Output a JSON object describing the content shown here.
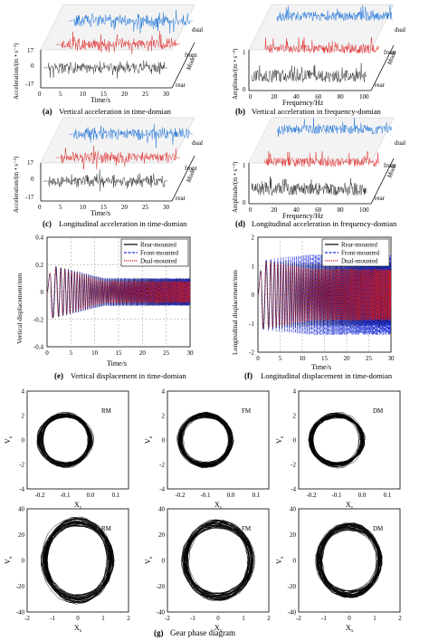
{
  "panels": {
    "a": {
      "letter": "(a)",
      "caption": "Vertical acceleration in time-domian",
      "ylabel": "Acceleration/(m • s⁻²)",
      "xlabel": "Time/s",
      "zlabel": "Mode",
      "yticks": [
        "17",
        "0",
        "-17"
      ],
      "xticks": [
        "0",
        "5",
        "10",
        "15",
        "20",
        "25",
        "30"
      ],
      "modes": [
        "dual",
        "front",
        "rear"
      ]
    },
    "b": {
      "letter": "(b)",
      "caption": "Vertical acceleration in frequency-domian",
      "ylabel": "Amplitude/(m • s⁻²)",
      "xlabel": "Frequency/Hz",
      "zlabel": "Mode",
      "yticks": [
        "1",
        "0"
      ],
      "xticks": [
        "0",
        "20",
        "40",
        "60",
        "80",
        "100"
      ],
      "modes": [
        "dual",
        "front",
        "rear"
      ]
    },
    "c": {
      "letter": "(c)",
      "caption": "Longitudinal acceleration in time-domian",
      "ylabel": "Acceleration/(m • s⁻²)",
      "xlabel": "Time/s",
      "zlabel": "Mode",
      "yticks": [
        "17",
        "0",
        "-17"
      ],
      "xticks": [
        "0",
        "5",
        "10",
        "15",
        "20",
        "25",
        "30"
      ],
      "modes": [
        "dual",
        "front",
        "rear"
      ]
    },
    "d": {
      "letter": "(d)",
      "caption": "Longitudinal acceleration in frequency-domian",
      "ylabel": "Amplitude/(m • s⁻²)",
      "xlabel": "Frequency/Hz",
      "zlabel": "Mode",
      "yticks": [
        "1",
        "0"
      ],
      "xticks": [
        "0",
        "20",
        "40",
        "60",
        "80",
        "100"
      ],
      "modes": [
        "dual",
        "front",
        "rear"
      ]
    },
    "e": {
      "letter": "(e)",
      "caption": "Vertical displacement in time-domian",
      "ylabel": "Vertical displacement/mm",
      "xlabel": "Time/s",
      "yticks": [
        "0.4",
        "0.2",
        "0",
        "-0.2",
        "-0.4"
      ],
      "xticks": [
        "0",
        "5",
        "10",
        "15",
        "20",
        "25",
        "30"
      ]
    },
    "f": {
      "letter": "(f)",
      "caption": "Longitudinal displacement in time-domian",
      "ylabel": "Longitudinal displacement/mm",
      "xlabel": "Time/s",
      "yticks": [
        "2",
        "1",
        "0",
        "-1",
        "-2"
      ],
      "xticks": [
        "0",
        "5",
        "10",
        "15",
        "20",
        "25",
        "30"
      ]
    },
    "legend": [
      "Rear-mounted",
      "Front-mounted",
      "Dual-mounted"
    ],
    "g": {
      "letter": "(g)",
      "caption": "Gear phase diagram",
      "top": {
        "xlabel": "X",
        "xsub": "z",
        "ylabel": "V",
        "ysub": "z",
        "xticks": [
          "-0.2",
          "-0.1",
          "0.0",
          "0.1"
        ],
        "yticks": [
          "4",
          "2",
          "0",
          "-2",
          "-4"
        ],
        "tags": [
          "RM",
          "FM",
          "DM"
        ]
      },
      "bottom": {
        "xlabel": "X",
        "xsub": "x",
        "ylabel": "V",
        "ysub": "x",
        "xticks": [
          "-2",
          "-1",
          "0",
          "1",
          "2"
        ],
        "yticks": [
          "40",
          "20",
          "0",
          "-20",
          "-40"
        ],
        "tags": [
          "RM",
          "FM",
          "DM"
        ]
      }
    }
  },
  "chart_data": [
    {
      "type": "line",
      "panel": "e",
      "xlabel": "Time/s",
      "ylabel": "Vertical displacement/mm",
      "xlim": [
        0,
        30
      ],
      "ylim": [
        -0.4,
        0.4
      ],
      "grid": true,
      "legend_position": "top-right",
      "series": [
        {
          "name": "Rear-mounted",
          "color": "#000000",
          "amplitude_start": 0.2,
          "amplitude_end": 0.1
        },
        {
          "name": "Front-mounted",
          "color": "#1f2fd6",
          "amplitude_start": 0.2,
          "amplitude_end": 0.1
        },
        {
          "name": "Dual-mounted",
          "color": "#d41a1a",
          "amplitude_start": 0.2,
          "amplitude_end": 0.08
        }
      ]
    },
    {
      "type": "line",
      "panel": "f",
      "xlabel": "Time/s",
      "ylabel": "Longitudinal displacement/mm",
      "xlim": [
        0,
        30
      ],
      "ylim": [
        -2,
        2
      ],
      "grid": true,
      "legend_position": "top-right",
      "series": [
        {
          "name": "Rear-mounted",
          "color": "#000000",
          "amplitude_start": 1.2,
          "amplitude_end": 1.1
        },
        {
          "name": "Front-mounted",
          "color": "#1f2fd6",
          "amplitude_start": 1.2,
          "amplitude_end": 1.4
        },
        {
          "name": "Dual-mounted",
          "color": "#d41a1a",
          "amplitude_start": 1.2,
          "amplitude_end": 0.9
        }
      ]
    },
    {
      "type": "line",
      "panel": "a",
      "xlim": [
        0,
        30
      ],
      "ylim": [
        -17,
        17
      ],
      "series": [
        {
          "name": "dual",
          "color": "#1e73d8"
        },
        {
          "name": "front",
          "color": "#e03030"
        },
        {
          "name": "rear",
          "color": "#333333"
        }
      ]
    },
    {
      "type": "line",
      "panel": "b",
      "xlim": [
        0,
        100
      ],
      "ylim": [
        0,
        1
      ],
      "series": [
        {
          "name": "dual",
          "color": "#1e73d8"
        },
        {
          "name": "front",
          "color": "#e03030"
        },
        {
          "name": "rear",
          "color": "#333333"
        }
      ]
    },
    {
      "type": "line",
      "panel": "c",
      "xlim": [
        0,
        30
      ],
      "ylim": [
        -17,
        17
      ],
      "series": [
        {
          "name": "dual",
          "color": "#1e73d8"
        },
        {
          "name": "front",
          "color": "#e03030"
        },
        {
          "name": "rear",
          "color": "#333333"
        }
      ]
    },
    {
      "type": "line",
      "panel": "d",
      "xlim": [
        0,
        100
      ],
      "ylim": [
        0,
        1
      ],
      "series": [
        {
          "name": "dual",
          "color": "#1e73d8"
        },
        {
          "name": "front",
          "color": "#e03030"
        },
        {
          "name": "rear",
          "color": "#333333"
        }
      ]
    },
    {
      "type": "scatter",
      "panel": "g-top",
      "xlim": [
        -0.25,
        0.15
      ],
      "ylim": [
        -4.5,
        4.5
      ],
      "orbits": [
        {
          "name": "RM",
          "center_x": -0.1,
          "half_width": 0.1,
          "half_height": 2.3
        },
        {
          "name": "FM",
          "center_x": -0.1,
          "half_width": 0.1,
          "half_height": 2.3
        },
        {
          "name": "DM",
          "center_x": -0.1,
          "half_width": 0.1,
          "half_height": 2.3
        }
      ]
    },
    {
      "type": "scatter",
      "panel": "g-bottom",
      "xlim": [
        -2,
        2
      ],
      "ylim": [
        -40,
        40
      ],
      "orbits": [
        {
          "name": "RM",
          "center_x": 0,
          "half_width": 1.3,
          "half_height": 30
        },
        {
          "name": "FM",
          "center_x": 0,
          "half_width": 1.3,
          "half_height": 28
        },
        {
          "name": "DM",
          "center_x": 0,
          "half_width": 1.2,
          "half_height": 26
        }
      ]
    }
  ]
}
